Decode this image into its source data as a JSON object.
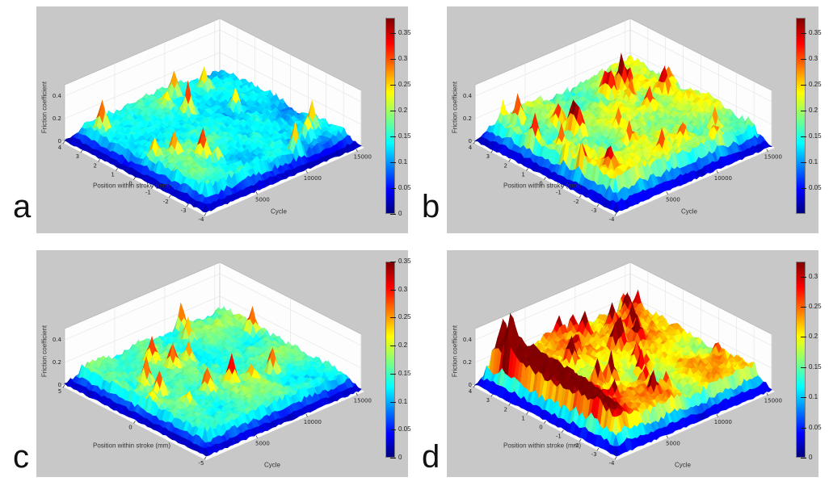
{
  "figure": {
    "background": "#ffffff",
    "panel_background": "#c8c8c8",
    "layout": "2x2 grid of 3D surface plots with jet colorbars"
  },
  "colormap": {
    "name": "jet",
    "stops": [
      "#00007f",
      "#0000ff",
      "#00ffff",
      "#ffff00",
      "#ff0000",
      "#7f0000"
    ],
    "stop_positions": [
      0,
      12,
      36,
      62,
      87,
      100
    ]
  },
  "chart_data": [
    {
      "panel": "a",
      "type": "surface",
      "xlabel": "Position within stroke (mm)",
      "ylabel": "Cycle",
      "zlabel": "Friction coefficient",
      "x_ticks": [
        4,
        3,
        2,
        1,
        0,
        -1,
        -2,
        -3,
        -4
      ],
      "x_range": [
        4,
        -4
      ],
      "y_ticks": [
        5000,
        10000,
        15000
      ],
      "y_range": [
        0,
        15500
      ],
      "z_ticks": [
        0,
        0.2,
        0.4
      ],
      "z_range": [
        0,
        0.5
      ],
      "colorbar_ticks": [
        "0.35",
        "0.3",
        "0.25",
        "0.2",
        "0.15",
        "0.1",
        "0.05",
        "0"
      ],
      "colorbar_max": 0.38,
      "typical_range": [
        0.1,
        0.22
      ],
      "surface": {
        "seed": 11,
        "baseline": 0.13,
        "patch_amp": 0.05,
        "noise_amp": 0.028,
        "spikes": 13,
        "spike_amp_max": 0.26,
        "cycle_gradient": 0.025,
        "streak_amp": 0
      },
      "description": "Noisy friction carpet mostly 0.10-0.20 (cyan-green) with yellow patches at low cycles and isolated spikes reaching ~0.35; values fall to ~0 (dark blue skirt) at all edges."
    },
    {
      "panel": "b",
      "type": "surface",
      "xlabel": "Position within stroke (mm)",
      "ylabel": "Cycle",
      "zlabel": "Friction coefficient",
      "x_ticks": [
        4,
        3,
        2,
        1,
        0,
        -1,
        -2,
        -3,
        -4
      ],
      "x_range": [
        4,
        -4
      ],
      "y_ticks": [
        5000,
        10000,
        15000
      ],
      "y_range": [
        0,
        15500
      ],
      "z_ticks": [
        0,
        0.2,
        0.4
      ],
      "z_range": [
        0,
        0.5
      ],
      "colorbar_ticks": [
        "0.35",
        "0.3",
        "0.25",
        "0.2",
        "0.15",
        "0.1",
        "0.05"
      ],
      "colorbar_max": 0.38,
      "typical_range": [
        0.15,
        0.28
      ],
      "surface": {
        "seed": 23,
        "baseline": 0.2,
        "patch_amp": 0.05,
        "noise_amp": 0.034,
        "spikes": 24,
        "spike_amp_max": 0.24,
        "cycle_gradient": 0,
        "streak_amp": 0
      },
      "description": "Higher friction carpet mostly 0.18-0.28 (yellow-orange) with many orange/red spikes up to ~0.38 scattered across all cycles; blue skirt at edges."
    },
    {
      "panel": "c",
      "type": "surface",
      "xlabel": "Position within stroke (mm)",
      "ylabel": "Cycle",
      "zlabel": "Friction coefficient",
      "x_ticks": [
        5,
        0,
        -5
      ],
      "x_range": [
        5,
        -5
      ],
      "y_ticks": [
        5000,
        10000,
        15000
      ],
      "y_range": [
        0,
        15500
      ],
      "z_ticks": [
        0,
        0.2,
        0.4
      ],
      "z_range": [
        0,
        0.5
      ],
      "colorbar_ticks": [
        "0.35",
        "0.3",
        "0.25",
        "0.2",
        "0.15",
        "0.1",
        "0.05",
        "0"
      ],
      "colorbar_max": 0.35,
      "typical_range": [
        0.12,
        0.2
      ],
      "surface": {
        "seed": 37,
        "baseline": 0.155,
        "patch_amp": 0.04,
        "noise_amp": 0.026,
        "spikes": 15,
        "spike_amp_max": 0.24,
        "cycle_gradient": 0,
        "streak_amp": 0
      },
      "description": "Smooth low friction carpet around 0.12-0.20 (green-cyan) with a few isolated red spikes near 0.3-0.35; blue skirt at edges."
    },
    {
      "panel": "d",
      "type": "surface",
      "xlabel": "Position within stroke (mm)",
      "ylabel": "Cycle",
      "zlabel": "Friction coefficient",
      "x_ticks": [
        4,
        3,
        2,
        1,
        0,
        -1,
        -2,
        -3,
        -4
      ],
      "x_range": [
        4,
        -4
      ],
      "y_ticks": [
        5000,
        10000,
        15000
      ],
      "y_range": [
        0,
        15500
      ],
      "z_ticks": [
        0,
        0.2,
        0.4
      ],
      "z_range": [
        0,
        0.5
      ],
      "colorbar_ticks": [
        "0.3",
        "0.25",
        "0.2",
        "0.15",
        "0.1",
        "0.05",
        "0"
      ],
      "colorbar_max": 0.325,
      "typical_range": [
        0.15,
        0.3
      ],
      "surface": {
        "seed": 53,
        "baseline": 0.19,
        "patch_amp": 0.05,
        "noise_amp": 0.034,
        "spikes": 26,
        "spike_amp_max": 0.24,
        "cycle_gradient": 0.03,
        "streak_amp": 0.14
      },
      "description": "Warm friction carpet 0.18-0.25 (yellow-orange) with a pronounced dark-red high-friction streak (~0.3+) running along the position axis at low cycle numbers, cooling toward green-cyan at high cycles."
    }
  ]
}
